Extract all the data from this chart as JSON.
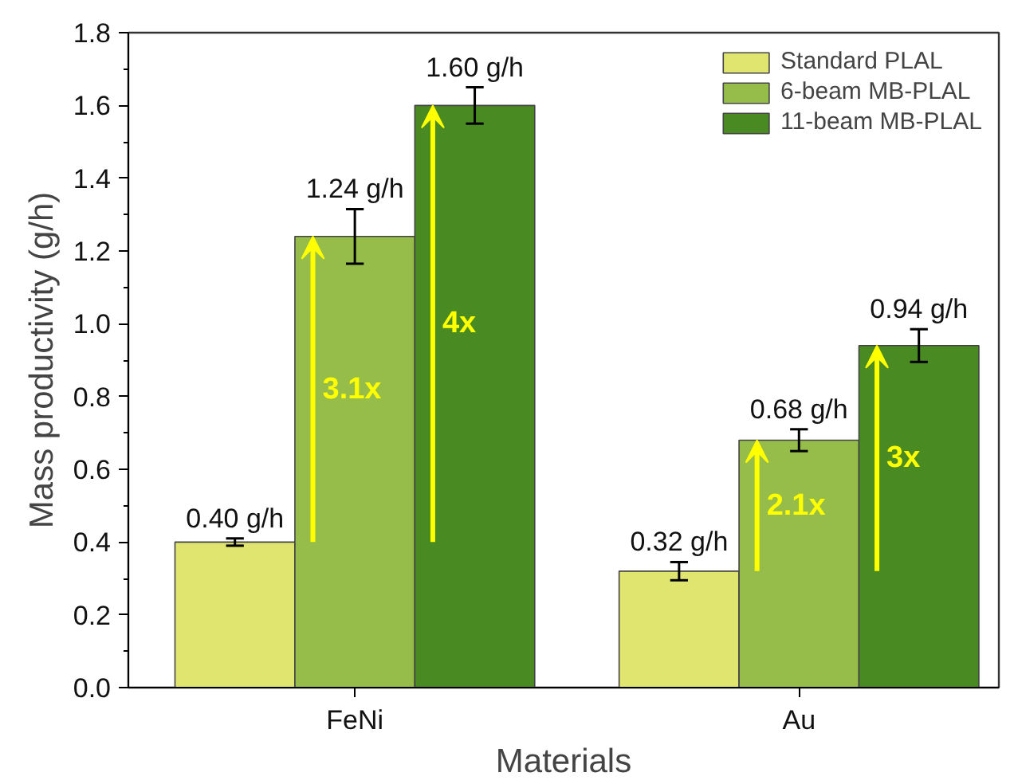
{
  "chart_data": {
    "type": "bar",
    "xlabel": "Materials",
    "ylabel": "Mass productivity (g/h)",
    "categories": [
      "FeNi",
      "Au"
    ],
    "series": [
      {
        "name": "Standard PLAL",
        "color": "#dfe56e",
        "values": [
          0.4,
          0.32
        ],
        "errors": [
          0.01,
          0.025
        ],
        "value_labels": [
          "0.40 g/h",
          "0.32 g/h"
        ]
      },
      {
        "name": "6-beam MB-PLAL",
        "color": "#96bd4a",
        "values": [
          1.24,
          0.68
        ],
        "errors": [
          0.075,
          0.03
        ],
        "value_labels": [
          "1.24 g/h",
          "0.68 g/h"
        ]
      },
      {
        "name": "11-beam MB-PLAL",
        "color": "#4a8a22",
        "values": [
          1.6,
          0.94
        ],
        "errors": [
          0.05,
          0.045
        ],
        "value_labels": [
          "1.60 g/h",
          "0.94 g/h"
        ]
      }
    ],
    "ylim": [
      0,
      1.8
    ],
    "yticks": [
      {
        "value": 0,
        "label": "0.0"
      },
      0.2,
      0.4,
      0.6,
      0.8,
      {
        "value": 1,
        "label": "1.0"
      },
      1.2,
      1.4,
      1.6,
      1.8
    ],
    "annotations": [
      "3.1x",
      "4x",
      "2.1x",
      "3x"
    ],
    "grid": false,
    "legend": "top right"
  }
}
